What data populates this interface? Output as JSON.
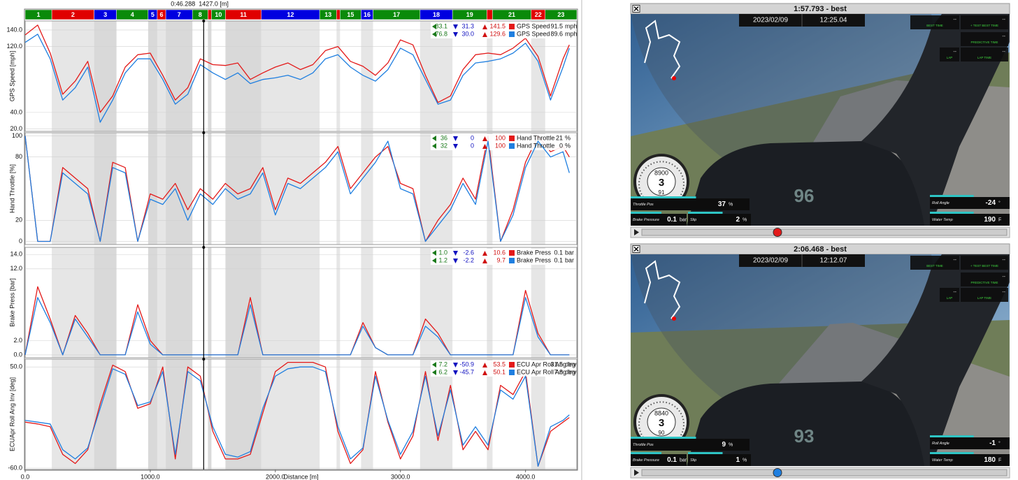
{
  "cursor": {
    "time": "0:46.288",
    "distance": {
      "value": 1427,
      "label": "1427.0 [m]"
    }
  },
  "segments": [
    {
      "label": "1",
      "color": "#0a8a0a",
      "end": 213
    },
    {
      "label": "2",
      "color": "#e00000",
      "end": 551
    },
    {
      "label": "3",
      "color": "#0000e0",
      "end": 730
    },
    {
      "label": "4",
      "color": "#0a8a0a",
      "end": 983
    },
    {
      "label": "5",
      "color": "#0000e0",
      "end": 1056
    },
    {
      "label": "6",
      "color": "#e00000",
      "end": 1124
    },
    {
      "label": "7",
      "color": "#0000e0",
      "end": 1337
    },
    {
      "label": "8",
      "color": "#0a8a0a",
      "end": 1461
    },
    {
      "label": null,
      "color": "#e00000",
      "end": 1489
    },
    {
      "label": "10",
      "color": "#0a8a0a",
      "end": 1601
    },
    {
      "label": "11",
      "color": "#e00000",
      "end": 1888
    },
    {
      "label": "12",
      "color": "#0000e0",
      "end": 2354
    },
    {
      "label": "13",
      "color": "#0a8a0a",
      "end": 2489
    },
    {
      "label": null,
      "color": "#e00000",
      "end": 2517
    },
    {
      "label": "15",
      "color": "#0a8a0a",
      "end": 2685
    },
    {
      "label": "16",
      "color": "#0000e0",
      "end": 2781
    },
    {
      "label": "17",
      "color": "#0a8a0a",
      "end": 3157
    },
    {
      "label": "18",
      "color": "#0000e0",
      "end": 3416
    },
    {
      "label": "19",
      "color": "#0a8a0a",
      "end": 3691
    },
    {
      "label": null,
      "color": "#e00000",
      "end": 3736
    },
    {
      "label": "21",
      "color": "#0a8a0a",
      "end": 4045
    },
    {
      "label": "22",
      "color": "#e00000",
      "end": 4157
    },
    {
      "label": "23",
      "color": "#0a8a0a",
      "end": 4410
    }
  ],
  "chart_data": [
    {
      "type": "line",
      "ylabel": "GPS Speed [mph]",
      "xlim": [
        0,
        4410
      ],
      "ylim": [
        17,
        151
      ],
      "grid": true,
      "yticks": [
        {
          "value": 20,
          "label": "20.0"
        },
        {
          "value": 40,
          "label": "40.0"
        },
        {
          "value": 120,
          "label": "120.0"
        },
        {
          "value": 140,
          "label": "140.0"
        }
      ],
      "x": [
        0,
        100,
        200,
        300,
        400,
        500,
        600,
        700,
        800,
        900,
        1000,
        1100,
        1200,
        1300,
        1400,
        1500,
        1600,
        1700,
        1800,
        1900,
        2000,
        2100,
        2200,
        2300,
        2400,
        2500,
        2600,
        2700,
        2800,
        2900,
        3000,
        3100,
        3200,
        3300,
        3400,
        3500,
        3600,
        3700,
        3800,
        3900,
        4000,
        4100,
        4200,
        4300,
        4350
      ],
      "series": [
        {
          "name": "GPS Speed",
          "color": "#e31a1a",
          "stats": [
            "83.1",
            "31.3",
            "141.5"
          ],
          "cursor_value": "91.5",
          "unit": "mph",
          "values": [
            134,
            146,
            112,
            62,
            78,
            102,
            40,
            60,
            95,
            110,
            112,
            85,
            55,
            70,
            105,
            98,
            97,
            100,
            80,
            88,
            95,
            100,
            92,
            98,
            115,
            120,
            102,
            96,
            85,
            100,
            128,
            122,
            85,
            52,
            60,
            92,
            110,
            112,
            110,
            118,
            130,
            108,
            60,
            105,
            122
          ]
        },
        {
          "name": "GPS Speed",
          "color": "#1f7fe0",
          "stats": [
            "76.8",
            "30.0",
            "129.6"
          ],
          "cursor_value": "89.6",
          "unit": "mph",
          "values": [
            125,
            135,
            105,
            55,
            70,
            95,
            28,
            55,
            88,
            105,
            105,
            80,
            50,
            62,
            98,
            88,
            80,
            88,
            75,
            80,
            82,
            85,
            80,
            88,
            105,
            110,
            95,
            85,
            78,
            92,
            118,
            110,
            80,
            50,
            55,
            85,
            100,
            102,
            105,
            112,
            124,
            102,
            55,
            95,
            118
          ]
        }
      ]
    },
    {
      "type": "line",
      "ylabel": "Hand Throttle [%]",
      "xlim": [
        0,
        4410
      ],
      "ylim": [
        -3,
        103
      ],
      "grid": true,
      "yticks": [
        0,
        20,
        80,
        100
      ],
      "x": [
        0,
        100,
        200,
        300,
        400,
        500,
        600,
        700,
        800,
        900,
        1000,
        1100,
        1200,
        1300,
        1400,
        1500,
        1600,
        1700,
        1800,
        1900,
        2000,
        2100,
        2200,
        2300,
        2400,
        2500,
        2600,
        2700,
        2800,
        2900,
        3000,
        3100,
        3200,
        3300,
        3400,
        3500,
        3600,
        3700,
        3800,
        3900,
        4000,
        4100,
        4200,
        4300,
        4350
      ],
      "series": [
        {
          "name": "Hand Throttle",
          "color": "#e31a1a",
          "stats": [
            "36",
            "0",
            "100"
          ],
          "cursor_value": "21",
          "unit": "%",
          "values": [
            100,
            0,
            0,
            70,
            60,
            50,
            0,
            75,
            70,
            0,
            45,
            40,
            55,
            30,
            50,
            40,
            55,
            45,
            50,
            70,
            30,
            60,
            55,
            65,
            75,
            90,
            50,
            65,
            80,
            90,
            55,
            50,
            0,
            20,
            35,
            60,
            40,
            100,
            0,
            30,
            75,
            100,
            85,
            90,
            80
          ]
        },
        {
          "name": "Hand Throttle",
          "color": "#1f7fe0",
          "stats": [
            "32",
            "0",
            "100"
          ],
          "cursor_value": "0",
          "unit": "%",
          "values": [
            100,
            0,
            0,
            65,
            55,
            45,
            0,
            70,
            65,
            0,
            40,
            35,
            50,
            20,
            45,
            35,
            50,
            40,
            45,
            65,
            25,
            55,
            50,
            60,
            70,
            85,
            45,
            60,
            75,
            95,
            50,
            45,
            0,
            15,
            30,
            55,
            35,
            95,
            0,
            25,
            70,
            95,
            80,
            85,
            65
          ]
        }
      ]
    },
    {
      "type": "line",
      "ylabel": "Brake Press [bar]",
      "xlim": [
        0,
        4410
      ],
      "ylim": [
        -0.4,
        15
      ],
      "grid": true,
      "yticks": [
        {
          "value": 0,
          "label": "0.0"
        },
        {
          "value": 2,
          "label": "2.0"
        },
        {
          "value": 12,
          "label": "12.0"
        },
        {
          "value": 14,
          "label": "14.0"
        }
      ],
      "x": [
        0,
        100,
        200,
        300,
        400,
        500,
        600,
        700,
        800,
        900,
        1000,
        1100,
        1200,
        1300,
        1400,
        1500,
        1600,
        1700,
        1800,
        1900,
        2000,
        2100,
        2200,
        2300,
        2400,
        2500,
        2600,
        2700,
        2800,
        2900,
        3000,
        3100,
        3200,
        3300,
        3400,
        3500,
        3600,
        3700,
        3800,
        3900,
        4000,
        4100,
        4200,
        4300,
        4350
      ],
      "series": [
        {
          "name": "Brake Press",
          "color": "#e31a1a",
          "stats": [
            "1.0",
            "-2.6",
            "10.6"
          ],
          "cursor_value": "0.1",
          "unit": "bar",
          "values": [
            0,
            9.5,
            5,
            0,
            5.5,
            3,
            0,
            0,
            0,
            7,
            2,
            0,
            0,
            0,
            0,
            0,
            0,
            0,
            8,
            0,
            0,
            0,
            0,
            0,
            0,
            0,
            0,
            4.5,
            1,
            0,
            0,
            0,
            5,
            3,
            0,
            0,
            0,
            0,
            0,
            0,
            9,
            3,
            0,
            0,
            0
          ]
        },
        {
          "name": "Brake Press",
          "color": "#1f7fe0",
          "stats": [
            "1.2",
            "-2.2",
            "9.7"
          ],
          "cursor_value": "0.1",
          "unit": "bar",
          "values": [
            0,
            8,
            4.5,
            0,
            5,
            2.5,
            0,
            0,
            0,
            6,
            1.5,
            0,
            0,
            0,
            0,
            0,
            0,
            0,
            7,
            0,
            0,
            0,
            0,
            0,
            0,
            0,
            0,
            4,
            1,
            0,
            0,
            0,
            4,
            2.5,
            0,
            0,
            0,
            0,
            0,
            0,
            8,
            2.5,
            0,
            0,
            0
          ]
        }
      ]
    },
    {
      "type": "line",
      "ylabel": "ECUApr Roll Ang Inv [deg]",
      "xlabel": "Distance [m]",
      "xlim": [
        0,
        4410
      ],
      "ylim": [
        -61.5,
        58.5
      ],
      "grid": true,
      "yticks": [
        {
          "value": -60,
          "label": "-60.0"
        },
        {
          "value": 50,
          "label": "50.0"
        }
      ],
      "xticks": [
        {
          "value": 0,
          "label": "0.0"
        },
        {
          "value": 1000,
          "label": "1000.0"
        },
        {
          "value": 2000,
          "label": "2000.0"
        },
        {
          "value": 3000,
          "label": "3000.0"
        },
        {
          "value": 4000,
          "label": "4000.0"
        }
      ],
      "x": [
        0,
        100,
        200,
        300,
        400,
        500,
        600,
        700,
        800,
        900,
        1000,
        1100,
        1200,
        1300,
        1400,
        1500,
        1600,
        1700,
        1800,
        1900,
        2000,
        2100,
        2200,
        2300,
        2400,
        2500,
        2600,
        2700,
        2800,
        2900,
        3000,
        3100,
        3200,
        3300,
        3400,
        3500,
        3600,
        3700,
        3800,
        3900,
        4000,
        4100,
        4200,
        4300,
        4350
      ],
      "series": [
        {
          "name": "ECU Apr Roll Ang Inv",
          "color": "#e31a1a",
          "stats": [
            "7.2",
            "-50.9",
            "53.5"
          ],
          "cursor_value": "31.5",
          "unit": "deg",
          "values": [
            -10,
            -12,
            -15,
            -45,
            -55,
            -40,
            10,
            52,
            45,
            5,
            10,
            50,
            -50,
            50,
            40,
            -20,
            -50,
            -50,
            -45,
            0,
            45,
            55,
            55,
            55,
            50,
            -20,
            -55,
            -40,
            45,
            -10,
            -50,
            -25,
            45,
            -30,
            30,
            -40,
            -20,
            -40,
            30,
            20,
            45,
            -58,
            -20,
            -10,
            -5
          ]
        },
        {
          "name": "ECU Apr Roll Ang Inv",
          "color": "#1f7fe0",
          "stats": [
            "6.2",
            "-45.7",
            "50.1"
          ],
          "cursor_value": "7.8",
          "unit": "deg",
          "values": [
            -8,
            -10,
            -12,
            -40,
            -50,
            -38,
            5,
            48,
            42,
            8,
            12,
            45,
            -45,
            45,
            35,
            -15,
            -45,
            -48,
            -42,
            5,
            40,
            48,
            50,
            50,
            45,
            -15,
            -50,
            -38,
            40,
            -8,
            -45,
            -20,
            40,
            -25,
            25,
            -35,
            -15,
            -35,
            25,
            15,
            40,
            -58,
            -15,
            -8,
            -2
          ]
        }
      ]
    }
  ],
  "videos": [
    {
      "title": "1:57.793 - best",
      "color": "#e31a1a",
      "date": "2023/02/09",
      "time": "12:25.04",
      "hud": [
        {
          "label": "BEST TIME",
          "value": "--"
        },
        {
          "label": "+ TEST BEST TIME",
          "value": "--"
        },
        {
          "label": "PREDICTIVE TIME",
          "value": "--"
        },
        {
          "label": "LAP",
          "value": "--"
        },
        {
          "label": "LAP TIME",
          "value": "--"
        }
      ],
      "rpm": "8900",
      "gear": "3",
      "speed": "91",
      "dash": "96",
      "throttle": {
        "label": "Throttle Pos",
        "value": "37",
        "unit": "%"
      },
      "brake": {
        "label": "Brake Pressure",
        "value": "0.1",
        "unit": "bar"
      },
      "slip": {
        "label": "Slip",
        "value": "2",
        "unit": "%"
      },
      "roll": {
        "label": "Roll Angle",
        "value": "-24",
        "unit": "°"
      },
      "water": {
        "label": "Water Temp",
        "value": "190",
        "unit": "F"
      }
    },
    {
      "title": "2:06.468 - best",
      "color": "#1f7fe0",
      "date": "2023/02/09",
      "time": "12:12.07",
      "hud": [
        {
          "label": "BEST TIME",
          "value": "--"
        },
        {
          "label": "+ TEST BEST TIME",
          "value": "--"
        },
        {
          "label": "PREDICTIVE TIME",
          "value": "--"
        },
        {
          "label": "LAP",
          "value": "--"
        },
        {
          "label": "LAP TIME",
          "value": "--"
        }
      ],
      "rpm": "8840",
      "gear": "3",
      "speed": "90",
      "dash": "93",
      "throttle": {
        "label": "Throttle Pos",
        "value": "9",
        "unit": "%"
      },
      "brake": {
        "label": "Brake Pressure",
        "value": "0.1",
        "unit": "bar"
      },
      "slip": {
        "label": "Slip",
        "value": "1",
        "unit": "%"
      },
      "roll": {
        "label": "Roll Angle",
        "value": "-1",
        "unit": "°"
      },
      "water": {
        "label": "Water Temp",
        "value": "180",
        "unit": "F"
      }
    }
  ]
}
